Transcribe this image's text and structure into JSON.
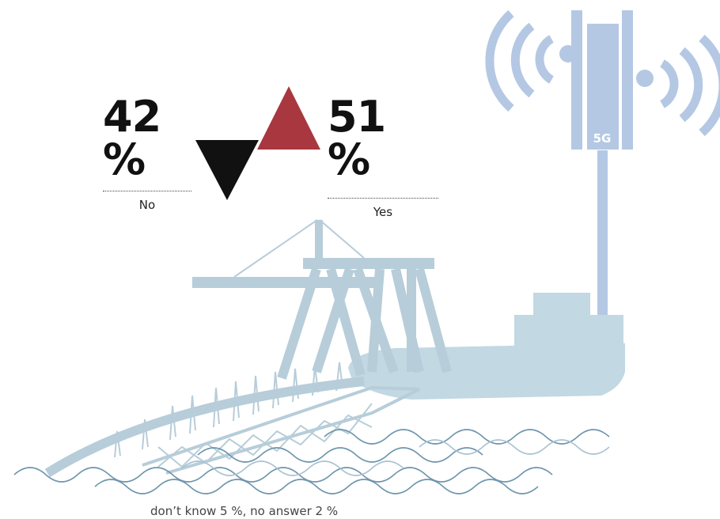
{
  "no": {
    "value": "42 %",
    "label": "No"
  },
  "yes": {
    "value": "51 %",
    "label": "Yes"
  },
  "footnote": "don’t know 5 %, no answer 2 %",
  "tower": {
    "badge": "5G"
  },
  "colors": {
    "yes_arrow": "#a8373f",
    "no_arrow": "#111111",
    "tower": "#b4c8e4",
    "ship_and_crane": "#c2d8e3",
    "waves": "#6e95ad"
  }
}
